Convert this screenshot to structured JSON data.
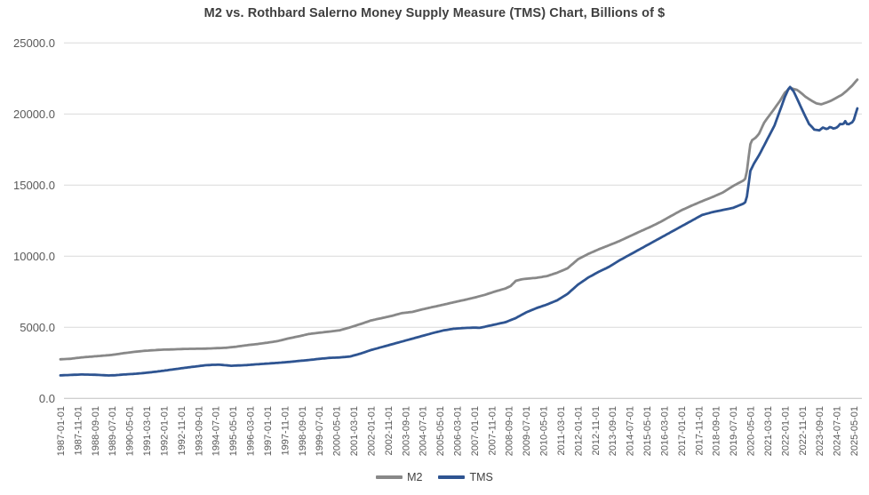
{
  "chart_data": {
    "type": "line",
    "title": "M2 vs. Rothbard Salerno Money Supply Measure (TMS) Chart, Billions of $",
    "xlabel": "",
    "ylabel": "",
    "ylim": [
      0,
      25000
    ],
    "grid": true,
    "legend_position": "bottom",
    "colors": {
      "grid": "#d9d9d9",
      "axis": "#bfbfbf",
      "tick": "#595959",
      "title": "#3f3f3f"
    },
    "yticks": [
      {
        "value": 0,
        "label": "0.0"
      },
      {
        "value": 5000,
        "label": "5000.0"
      },
      {
        "value": 10000,
        "label": "10000.0"
      },
      {
        "value": 15000,
        "label": "15000.0"
      },
      {
        "value": 20000,
        "label": "20000.0"
      },
      {
        "value": 25000,
        "label": "25000.0"
      }
    ],
    "x_unit": "months since 1987-01",
    "x_tick_interval_months": 10,
    "x_last_month": 462,
    "xticks": [
      "1987-01-01",
      "1987-11-01",
      "1988-09-01",
      "1989-07-01",
      "1990-05-01",
      "1991-03-01",
      "1992-01-01",
      "1992-11-01",
      "1993-09-01",
      "1994-07-01",
      "1995-05-01",
      "1996-03-01",
      "1997-01-01",
      "1997-11-01",
      "1998-09-01",
      "1999-07-01",
      "2000-05-01",
      "2001-03-01",
      "2002-01-01",
      "2002-11-01",
      "2003-09-01",
      "2004-07-01",
      "2005-05-01",
      "2006-03-01",
      "2007-01-01",
      "2007-11-01",
      "2008-09-01",
      "2009-07-01",
      "2010-05-01",
      "2011-03-01",
      "2012-01-01",
      "2012-11-01",
      "2013-09-01",
      "2014-07-01",
      "2015-05-01",
      "2016-03-01",
      "2017-01-01",
      "2017-11-01",
      "2018-09-01",
      "2019-07-01",
      "2020-05-01",
      "2021-03-01",
      "2022-01-01",
      "2022-11-01",
      "2023-09-01",
      "2024-07-01",
      "2025-05-01"
    ],
    "series": [
      {
        "name": "M2",
        "color": "#888888",
        "points": [
          [
            0,
            2750
          ],
          [
            6,
            2790
          ],
          [
            12,
            2880
          ],
          [
            18,
            2940
          ],
          [
            24,
            3000
          ],
          [
            30,
            3060
          ],
          [
            36,
            3170
          ],
          [
            42,
            3260
          ],
          [
            48,
            3340
          ],
          [
            54,
            3390
          ],
          [
            60,
            3430
          ],
          [
            66,
            3450
          ],
          [
            72,
            3480
          ],
          [
            78,
            3490
          ],
          [
            84,
            3500
          ],
          [
            90,
            3530
          ],
          [
            96,
            3560
          ],
          [
            102,
            3640
          ],
          [
            108,
            3740
          ],
          [
            114,
            3820
          ],
          [
            120,
            3920
          ],
          [
            126,
            4030
          ],
          [
            132,
            4210
          ],
          [
            138,
            4360
          ],
          [
            144,
            4530
          ],
          [
            150,
            4620
          ],
          [
            156,
            4700
          ],
          [
            162,
            4790
          ],
          [
            168,
            5000
          ],
          [
            174,
            5230
          ],
          [
            180,
            5480
          ],
          [
            186,
            5640
          ],
          [
            192,
            5800
          ],
          [
            198,
            6000
          ],
          [
            204,
            6080
          ],
          [
            210,
            6270
          ],
          [
            216,
            6430
          ],
          [
            222,
            6590
          ],
          [
            228,
            6760
          ],
          [
            234,
            6920
          ],
          [
            240,
            7090
          ],
          [
            246,
            7280
          ],
          [
            252,
            7520
          ],
          [
            258,
            7730
          ],
          [
            261,
            7900
          ],
          [
            264,
            8270
          ],
          [
            268,
            8390
          ],
          [
            272,
            8440
          ],
          [
            276,
            8480
          ],
          [
            282,
            8600
          ],
          [
            288,
            8840
          ],
          [
            294,
            9150
          ],
          [
            300,
            9780
          ],
          [
            306,
            10160
          ],
          [
            312,
            10480
          ],
          [
            318,
            10770
          ],
          [
            324,
            11060
          ],
          [
            330,
            11400
          ],
          [
            336,
            11740
          ],
          [
            342,
            12060
          ],
          [
            348,
            12420
          ],
          [
            354,
            12830
          ],
          [
            360,
            13230
          ],
          [
            366,
            13560
          ],
          [
            372,
            13870
          ],
          [
            378,
            14160
          ],
          [
            384,
            14480
          ],
          [
            390,
            14940
          ],
          [
            396,
            15330
          ],
          [
            397,
            15450
          ],
          [
            398,
            15990
          ],
          [
            399,
            17000
          ],
          [
            400,
            17880
          ],
          [
            401,
            18160
          ],
          [
            403,
            18330
          ],
          [
            405,
            18610
          ],
          [
            408,
            19400
          ],
          [
            411,
            19900
          ],
          [
            414,
            20390
          ],
          [
            417,
            20900
          ],
          [
            420,
            21500
          ],
          [
            423,
            21840
          ],
          [
            425,
            21760
          ],
          [
            427,
            21700
          ],
          [
            429,
            21520
          ],
          [
            432,
            21210
          ],
          [
            434,
            21050
          ],
          [
            436,
            20900
          ],
          [
            438,
            20760
          ],
          [
            441,
            20680
          ],
          [
            444,
            20800
          ],
          [
            447,
            20950
          ],
          [
            450,
            21150
          ],
          [
            453,
            21350
          ],
          [
            456,
            21650
          ],
          [
            459,
            22000
          ],
          [
            462,
            22420
          ]
        ]
      },
      {
        "name": "TMS",
        "color": "#2e5491",
        "points": [
          [
            0,
            1620
          ],
          [
            6,
            1650
          ],
          [
            12,
            1680
          ],
          [
            18,
            1670
          ],
          [
            24,
            1640
          ],
          [
            28,
            1615
          ],
          [
            32,
            1630
          ],
          [
            36,
            1675
          ],
          [
            42,
            1720
          ],
          [
            48,
            1780
          ],
          [
            54,
            1860
          ],
          [
            60,
            1950
          ],
          [
            66,
            2050
          ],
          [
            72,
            2150
          ],
          [
            78,
            2240
          ],
          [
            84,
            2330
          ],
          [
            88,
            2360
          ],
          [
            92,
            2370
          ],
          [
            96,
            2330
          ],
          [
            99,
            2295
          ],
          [
            102,
            2310
          ],
          [
            108,
            2345
          ],
          [
            114,
            2400
          ],
          [
            120,
            2450
          ],
          [
            126,
            2500
          ],
          [
            132,
            2560
          ],
          [
            138,
            2630
          ],
          [
            144,
            2700
          ],
          [
            150,
            2780
          ],
          [
            156,
            2850
          ],
          [
            162,
            2880
          ],
          [
            168,
            2950
          ],
          [
            174,
            3150
          ],
          [
            180,
            3400
          ],
          [
            186,
            3600
          ],
          [
            192,
            3800
          ],
          [
            198,
            4000
          ],
          [
            204,
            4200
          ],
          [
            210,
            4400
          ],
          [
            216,
            4600
          ],
          [
            222,
            4780
          ],
          [
            228,
            4900
          ],
          [
            234,
            4950
          ],
          [
            240,
            4980
          ],
          [
            243,
            4960
          ],
          [
            246,
            5040
          ],
          [
            252,
            5200
          ],
          [
            258,
            5360
          ],
          [
            264,
            5650
          ],
          [
            270,
            6050
          ],
          [
            276,
            6350
          ],
          [
            282,
            6600
          ],
          [
            288,
            6900
          ],
          [
            294,
            7350
          ],
          [
            300,
            8000
          ],
          [
            306,
            8500
          ],
          [
            312,
            8900
          ],
          [
            318,
            9250
          ],
          [
            324,
            9700
          ],
          [
            330,
            10100
          ],
          [
            336,
            10500
          ],
          [
            342,
            10900
          ],
          [
            348,
            11300
          ],
          [
            354,
            11700
          ],
          [
            360,
            12100
          ],
          [
            366,
            12500
          ],
          [
            372,
            12900
          ],
          [
            378,
            13100
          ],
          [
            384,
            13250
          ],
          [
            390,
            13400
          ],
          [
            396,
            13700
          ],
          [
            397,
            13800
          ],
          [
            398,
            14200
          ],
          [
            399,
            15100
          ],
          [
            400,
            16000
          ],
          [
            402,
            16500
          ],
          [
            405,
            17100
          ],
          [
            408,
            17800
          ],
          [
            411,
            18500
          ],
          [
            414,
            19200
          ],
          [
            417,
            20200
          ],
          [
            420,
            21200
          ],
          [
            422,
            21750
          ],
          [
            423,
            21900
          ],
          [
            425,
            21600
          ],
          [
            427,
            21100
          ],
          [
            430,
            20300
          ],
          [
            432,
            19800
          ],
          [
            434,
            19300
          ],
          [
            436,
            19050
          ],
          [
            437,
            18900
          ],
          [
            439,
            18870
          ],
          [
            440,
            18850
          ],
          [
            441,
            18950
          ],
          [
            442,
            19050
          ],
          [
            443,
            19000
          ],
          [
            444,
            18950
          ],
          [
            445,
            18980
          ],
          [
            446,
            19080
          ],
          [
            447,
            19050
          ],
          [
            448,
            18980
          ],
          [
            449,
            19000
          ],
          [
            450,
            19050
          ],
          [
            451,
            19150
          ],
          [
            452,
            19300
          ],
          [
            453,
            19280
          ],
          [
            454,
            19320
          ],
          [
            455,
            19500
          ],
          [
            456,
            19300
          ],
          [
            457,
            19280
          ],
          [
            458,
            19350
          ],
          [
            459,
            19420
          ],
          [
            460,
            19600
          ],
          [
            461,
            20000
          ],
          [
            462,
            20400
          ]
        ]
      }
    ]
  }
}
